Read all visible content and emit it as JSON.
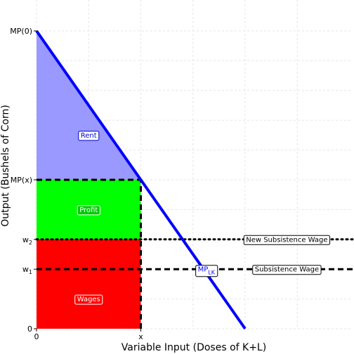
{
  "chart_data": {
    "type": "area",
    "title": "",
    "xlabel": "Variable Input (Doses of K+L)",
    "ylabel": "Output (Bushels of Corn)",
    "xlim": [
      0,
      10
    ],
    "ylim": [
      0,
      10
    ],
    "grid": true,
    "x_ticks": [
      {
        "value": 0,
        "label": "0"
      },
      {
        "value": 3.5,
        "label": "x"
      }
    ],
    "y_ticks": [
      {
        "value": 0,
        "label": "0",
        "sub": ""
      },
      {
        "value": 2,
        "label": "w",
        "sub": "1"
      },
      {
        "value": 3,
        "label": "w",
        "sub": "2"
      },
      {
        "value": 5,
        "label": "MP(x)",
        "sub": ""
      },
      {
        "value": 10,
        "label": "MP(0)",
        "sub": ""
      }
    ],
    "mp_curve": {
      "name": "MP",
      "name_sub": "LK",
      "label_x": 5.7,
      "label_y": 2.0,
      "color": "#0000ff",
      "points": [
        [
          0,
          10
        ],
        [
          7,
          0
        ]
      ]
    },
    "regions": [
      {
        "name": "Rent",
        "color": "#9999ff",
        "text_color": "#0000cc",
        "label_y": 6.5,
        "polygon": [
          [
            0,
            10
          ],
          [
            3.5,
            5
          ],
          [
            0,
            5
          ]
        ]
      },
      {
        "name": "Profit",
        "color": "#00ff00",
        "text_color": "#00cc00",
        "label_y": 4.0,
        "polygon": [
          [
            0,
            5
          ],
          [
            3.5,
            5
          ],
          [
            3.5,
            3
          ],
          [
            0,
            3
          ]
        ]
      },
      {
        "name": "Wages",
        "color": "#ff0000",
        "text_color": "#ff0000",
        "label_y": 1.0,
        "polygon": [
          [
            0,
            3
          ],
          [
            3.5,
            3
          ],
          [
            3.5,
            0
          ],
          [
            0,
            0
          ]
        ]
      }
    ],
    "lines": [
      {
        "name": "Subsistence Wage",
        "y": 2,
        "style": "dashed",
        "label_x": 8.4
      },
      {
        "name": "New Subsistence Wage",
        "y": 3,
        "style": "dotted",
        "label_x": 8.4
      },
      {
        "name": "",
        "y": 5,
        "style": "dashed",
        "x_end": 3.5
      },
      {
        "name": "",
        "vertical_x": 3.5,
        "style": "dashed",
        "y_end": 5
      }
    ]
  }
}
